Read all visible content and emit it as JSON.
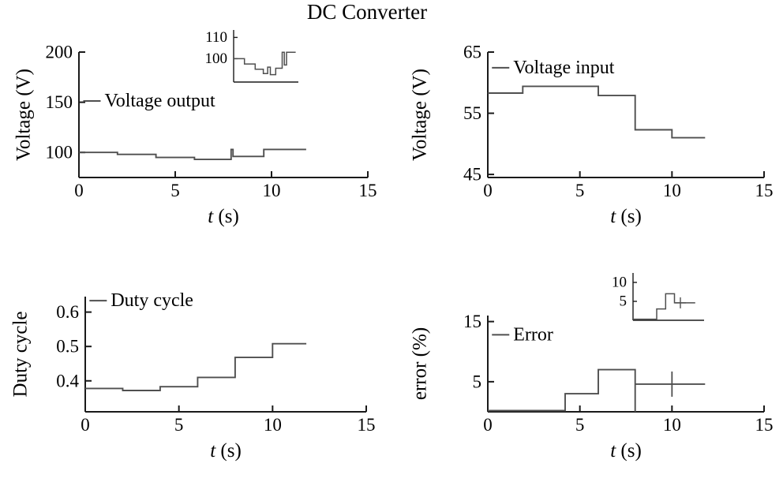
{
  "title": "DC Converter",
  "colors": {
    "background": "#ffffff",
    "axis": "#1a1a1a",
    "series": "#4f4f4f",
    "text": "#000000"
  },
  "chart_data": [
    {
      "id": "voltage-output",
      "type": "line",
      "title": "",
      "xlabel": "t (s)",
      "ylabel": "Voltage (V)",
      "legend": "Voltage output",
      "legend_pos": {
        "fx": 0.015,
        "fy": 0.39
      },
      "xlim": [
        0,
        15
      ],
      "ylim": [
        75,
        200
      ],
      "xticks": [
        0,
        5,
        10,
        15
      ],
      "yticks": [
        100,
        150,
        200
      ],
      "grid": false,
      "points": [
        [
          0,
          100
        ],
        [
          2,
          100
        ],
        [
          2,
          98
        ],
        [
          4,
          98
        ],
        [
          4,
          95
        ],
        [
          6,
          95
        ],
        [
          6,
          93
        ],
        [
          7.9,
          93
        ],
        [
          7.9,
          103
        ],
        [
          8,
          103
        ],
        [
          8,
          96
        ],
        [
          9.6,
          96
        ],
        [
          9.6,
          103
        ],
        [
          11.8,
          103
        ]
      ],
      "markers": []
    },
    {
      "id": "voltage-output-inset",
      "type": "line",
      "title": "",
      "xlabel": "",
      "ylabel": "",
      "legend": "",
      "xlim": [
        0,
        12
      ],
      "ylim": [
        89,
        113.5
      ],
      "xticks": [],
      "yticks": [
        100,
        110
      ],
      "grid": false,
      "points": [
        [
          0,
          100
        ],
        [
          2,
          100
        ],
        [
          2,
          97.5
        ],
        [
          4,
          97.5
        ],
        [
          4,
          95
        ],
        [
          5.5,
          95
        ],
        [
          5.5,
          93
        ],
        [
          6.3,
          93
        ],
        [
          6.3,
          96
        ],
        [
          6.8,
          96
        ],
        [
          6.8,
          92.5
        ],
        [
          7.8,
          92.5
        ],
        [
          7.8,
          95.5
        ],
        [
          9,
          95.5
        ],
        [
          9,
          103
        ],
        [
          9.4,
          103
        ],
        [
          9.4,
          97
        ],
        [
          9.8,
          97
        ],
        [
          9.8,
          103
        ],
        [
          11.5,
          103
        ]
      ],
      "markers": []
    },
    {
      "id": "voltage-input",
      "type": "line",
      "title": "",
      "xlabel": "t (s)",
      "ylabel": "Voltage (V)",
      "legend": "Voltage input",
      "legend_pos": {
        "fx": 0.015,
        "fy": 0.125
      },
      "xlim": [
        0,
        15
      ],
      "ylim": [
        44.5,
        65
      ],
      "xticks": [
        0,
        5,
        10,
        15
      ],
      "yticks": [
        45,
        55,
        65
      ],
      "grid": false,
      "points": [
        [
          0,
          58.3
        ],
        [
          1.9,
          58.3
        ],
        [
          1.9,
          59.4
        ],
        [
          6,
          59.4
        ],
        [
          6,
          57.9
        ],
        [
          8,
          57.9
        ],
        [
          8,
          52.3
        ],
        [
          10,
          52.3
        ],
        [
          10,
          51
        ],
        [
          11.8,
          51
        ]
      ],
      "markers": []
    },
    {
      "id": "duty-cycle",
      "type": "line",
      "title": "",
      "xlabel": "t (s)",
      "ylabel": "Duty cycle",
      "legend": "Duty cycle",
      "legend_pos": {
        "fx": 0.015,
        "fy": 0.035
      },
      "xlim": [
        0,
        15
      ],
      "ylim": [
        0.31,
        0.645
      ],
      "xticks": [
        0,
        5,
        10,
        15
      ],
      "yticks": [
        0.4,
        0.5,
        0.6
      ],
      "grid": false,
      "points": [
        [
          0,
          0.378
        ],
        [
          2,
          0.378
        ],
        [
          2,
          0.372
        ],
        [
          4,
          0.372
        ],
        [
          4,
          0.383
        ],
        [
          6,
          0.383
        ],
        [
          6,
          0.41
        ],
        [
          8,
          0.41
        ],
        [
          8,
          0.468
        ],
        [
          10,
          0.468
        ],
        [
          10,
          0.508
        ],
        [
          11.8,
          0.508
        ]
      ],
      "markers": []
    },
    {
      "id": "error",
      "type": "line",
      "title": "",
      "xlabel": "t (s)",
      "ylabel": "error (%)",
      "legend": "Error",
      "legend_pos": {
        "fx": 0.015,
        "fy": 0.2
      },
      "xlim": [
        0,
        15
      ],
      "ylim": [
        0,
        16
      ],
      "xticks": [
        0,
        5,
        10,
        15
      ],
      "yticks": [
        5,
        15
      ],
      "grid": false,
      "points": [
        [
          0,
          0.2
        ],
        [
          4.2,
          0.2
        ],
        [
          4.2,
          3
        ],
        [
          6,
          3
        ],
        [
          6,
          7
        ],
        [
          8,
          7
        ],
        [
          8,
          0
        ],
        [
          8,
          4.6
        ],
        [
          10,
          4.6
        ],
        [
          11.8,
          4.6
        ]
      ],
      "markers": [
        {
          "x": 10,
          "y": 4.6,
          "type": "vline"
        }
      ]
    },
    {
      "id": "error-inset",
      "type": "line",
      "title": "",
      "xlabel": "",
      "ylabel": "",
      "legend": "",
      "xlim": [
        0,
        12
      ],
      "ylim": [
        0,
        12.5
      ],
      "xticks": [],
      "yticks": [
        5,
        10
      ],
      "grid": false,
      "points": [
        [
          0,
          0.3
        ],
        [
          4,
          0.3
        ],
        [
          4,
          3
        ],
        [
          5.5,
          3
        ],
        [
          5.5,
          7
        ],
        [
          7,
          7
        ],
        [
          7,
          4.6
        ],
        [
          10.5,
          4.6
        ]
      ],
      "markers": [
        {
          "x": 8,
          "y": 4.6,
          "type": "plus"
        }
      ]
    }
  ]
}
